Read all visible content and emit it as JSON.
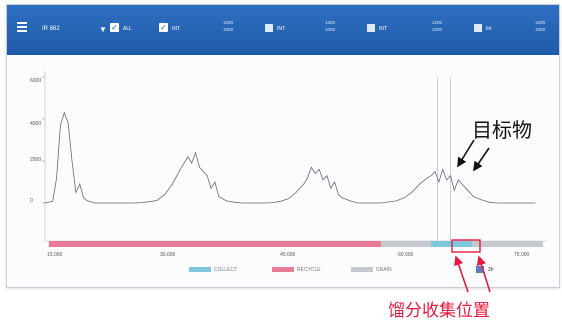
{
  "toolbar": {
    "dropdown_label": "IR 862",
    "check1_label": "ALL",
    "check2_label": "INT",
    "group1": [
      "1200",
      "1000"
    ],
    "group2": [
      "1200",
      "1000"
    ],
    "group3": [
      "1200",
      "1000"
    ],
    "group4": [
      "1200",
      "1000"
    ],
    "btn1_label": "INT",
    "btn2_label": "INT",
    "btn3_label": "INT",
    "btn4_label": "Int"
  },
  "chart_data": {
    "type": "line",
    "yticks": [
      "6000",
      "4000",
      "2000",
      "0"
    ],
    "xticks": [
      "15.000",
      "30.000",
      "45.000",
      "60.000",
      "75.000"
    ],
    "ylim": [
      0,
      6000
    ],
    "xlim": [
      13.5,
      78.5
    ],
    "x": [
      13.5,
      14.5,
      15.0,
      15.5,
      16.0,
      16.5,
      17.0,
      17.5,
      18.0,
      18.5,
      19.0,
      19.5,
      20.0,
      21,
      22,
      23,
      24,
      25,
      26,
      27,
      28,
      29,
      30,
      31,
      31.5,
      32,
      32.5,
      33,
      33.5,
      34,
      34.5,
      35,
      35.5,
      36,
      37,
      38,
      39,
      40,
      41,
      42,
      43,
      44,
      45,
      46,
      47,
      47.5,
      48,
      48.5,
      49,
      49.5,
      50,
      50.5,
      51,
      51.5,
      52,
      53,
      54,
      55,
      56,
      57,
      58,
      59,
      60,
      61,
      62,
      63,
      63.5,
      64,
      64.5,
      65,
      65.5,
      66,
      66.5,
      67,
      67.5,
      68,
      69,
      70,
      71,
      72,
      73,
      74,
      75,
      76,
      77
    ],
    "y": [
      0,
      80,
      1200,
      3700,
      4300,
      3800,
      2000,
      500,
      900,
      250,
      100,
      50,
      0,
      0,
      0,
      0,
      0,
      0,
      20,
      60,
      120,
      400,
      900,
      1600,
      1900,
      2200,
      1900,
      2400,
      1700,
      1500,
      1300,
      700,
      1000,
      300,
      100,
      40,
      0,
      0,
      0,
      0,
      20,
      80,
      200,
      500,
      900,
      1200,
      1700,
      1400,
      1600,
      1100,
      1300,
      700,
      1000,
      400,
      250,
      100,
      0,
      0,
      0,
      0,
      50,
      100,
      250,
      500,
      900,
      1200,
      1300,
      1500,
      1000,
      1600,
      1100,
      1300,
      600,
      1100,
      900,
      700,
      300,
      150,
      40,
      0,
      0,
      0,
      0,
      0,
      0
    ],
    "ranges": [
      {
        "name": "RECYCLE",
        "from": 14.0,
        "to": 57.0,
        "color": "#e87b98"
      },
      {
        "name": "COLLECT",
        "from": 63.5,
        "to": 68.8,
        "color": "#7ec6dd"
      },
      {
        "name": "DRAIN",
        "from": 57.0,
        "to": 78.0,
        "color": "#c6c8cf"
      }
    ],
    "markers_x": [
      64.3,
      66.0
    ],
    "legend": [
      {
        "label": "COLLECT",
        "color": "#7ec6dd"
      },
      {
        "label": "RECYCLE",
        "color": "#e87b98"
      },
      {
        "label": "DRAIN",
        "color": "#c6c8cf"
      }
    ],
    "zoom_label": "2h"
  },
  "annotations": {
    "target_label": "目标物",
    "position_label": "馏分收集位置",
    "arrow_color": "#111111",
    "position_color": "#e8193e"
  }
}
